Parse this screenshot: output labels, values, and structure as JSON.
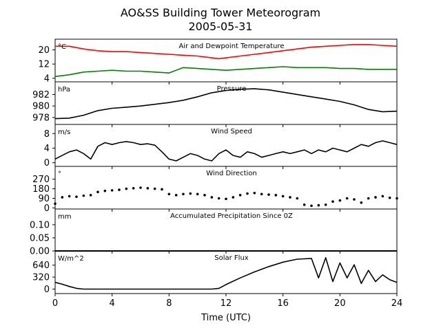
{
  "figure": {
    "title_line1": "AO&SS Building Tower Meteorogram",
    "title_line2": "2005-05-31",
    "xlabel": "Time (UTC)"
  },
  "chart_data": [
    {
      "type": "line",
      "id": "temp",
      "title": "Air and Dewpoint Temperature",
      "unit": "°C",
      "xlim": [
        0,
        24
      ],
      "ylim": [
        2,
        26
      ],
      "yticks": [
        4,
        12,
        20
      ],
      "xticks": [
        0,
        4,
        8,
        12,
        16,
        20,
        24
      ],
      "series": [
        {
          "color": "#ff0000",
          "x": [
            0,
            1,
            2,
            3,
            4,
            5,
            6,
            7,
            8,
            9,
            10,
            11,
            11.5,
            12,
            13,
            14,
            15,
            16,
            17,
            18,
            19,
            20,
            21,
            22,
            23,
            24
          ],
          "y": [
            22,
            22,
            20.5,
            19.5,
            19,
            19,
            18.5,
            18,
            17.5,
            17,
            16.5,
            15.5,
            15,
            15.5,
            16.5,
            17.5,
            18.5,
            19.5,
            20.5,
            21.5,
            22,
            22.5,
            23,
            23,
            22.5,
            22
          ]
        },
        {
          "color": "#008000",
          "x": [
            0,
            1,
            2,
            3,
            4,
            5,
            6,
            7,
            8,
            9,
            10,
            11,
            12,
            13,
            14,
            15,
            16,
            17,
            18,
            19,
            20,
            21,
            22,
            23,
            24
          ],
          "y": [
            5,
            6,
            7.5,
            8,
            8.5,
            8,
            8,
            7.5,
            7,
            10,
            9.5,
            9,
            8.5,
            9,
            9.5,
            10,
            10.5,
            10,
            10,
            10,
            9.5,
            9.5,
            9,
            9,
            9
          ]
        }
      ]
    },
    {
      "type": "line",
      "id": "pressure",
      "title": "Pressure",
      "unit": "hPa",
      "xlim": [
        0,
        24
      ],
      "ylim": [
        976.8,
        984.2
      ],
      "yticks": [
        978,
        980,
        982
      ],
      "xticks": [
        0,
        4,
        8,
        12,
        16,
        20,
        24
      ],
      "series": [
        {
          "color": "#000000",
          "x": [
            0,
            1,
            2,
            3,
            4,
            5,
            6,
            7,
            8,
            9,
            10,
            11,
            12,
            13,
            14,
            15,
            16,
            17,
            18,
            19,
            20,
            21,
            22,
            23,
            24
          ],
          "y": [
            977.8,
            977.9,
            978.4,
            979.2,
            979.6,
            979.8,
            980.0,
            980.3,
            980.6,
            981.0,
            981.6,
            982.3,
            982.7,
            982.9,
            983.0,
            982.8,
            982.4,
            982.0,
            981.6,
            981.2,
            980.8,
            980.2,
            979.4,
            979.0,
            979.1
          ]
        }
      ]
    },
    {
      "type": "line",
      "id": "wind_speed",
      "title": "Wind Speed",
      "unit": "m/s",
      "xlim": [
        0,
        24
      ],
      "ylim": [
        -1,
        10.5
      ],
      "yticks": [
        0,
        4,
        8
      ],
      "xticks": [
        0,
        4,
        8,
        12,
        16,
        20,
        24
      ],
      "series": [
        {
          "color": "#000000",
          "x": [
            0,
            0.5,
            1,
            1.5,
            2,
            2.5,
            3,
            3.5,
            4,
            4.5,
            5,
            5.5,
            6,
            6.5,
            7,
            7.5,
            8,
            8.5,
            9,
            9.5,
            10,
            10.5,
            11,
            11.5,
            12,
            12.5,
            13,
            13.5,
            14,
            14.5,
            15,
            15.5,
            16,
            16.5,
            17,
            17.5,
            18,
            18.5,
            19,
            19.5,
            20,
            20.5,
            21,
            21.5,
            22,
            22.5,
            23,
            23.5,
            24
          ],
          "y": [
            1,
            2,
            3,
            3.5,
            2.5,
            1,
            4.5,
            5.5,
            5,
            5.5,
            5.8,
            5.5,
            5,
            5.2,
            4.8,
            3,
            1,
            0.5,
            1.5,
            2.5,
            2,
            1,
            0.5,
            2.5,
            3.5,
            2,
            1.5,
            3,
            2.5,
            1.5,
            2,
            2.5,
            3,
            2.5,
            3,
            3.5,
            2.5,
            3.5,
            3,
            4,
            3.5,
            3,
            4,
            5,
            4.5,
            5.5,
            6,
            5.5,
            5
          ]
        }
      ]
    },
    {
      "type": "scatter",
      "id": "wind_direction",
      "title": "Wind Direction",
      "unit": "°",
      "xlim": [
        0,
        24
      ],
      "ylim": [
        -10,
        390
      ],
      "yticks": [
        0,
        90,
        180,
        270
      ],
      "xticks": [
        0,
        4,
        8,
        12,
        16,
        20,
        24
      ],
      "series": [
        {
          "color": "#000000",
          "x": [
            0,
            0.5,
            1,
            1.5,
            2,
            2.5,
            3,
            3.5,
            4,
            4.5,
            5,
            5.5,
            6,
            6.5,
            7,
            7.5,
            8,
            8.5,
            9,
            9.5,
            10,
            10.5,
            11,
            11.5,
            12,
            12.5,
            13,
            13.5,
            14,
            14.5,
            15,
            15.5,
            16,
            16.5,
            17,
            17.5,
            18,
            18.5,
            19,
            19.5,
            20,
            20.5,
            21,
            21.5,
            22,
            22.5,
            23,
            23.5,
            24
          ],
          "y": [
            40,
            100,
            110,
            105,
            115,
            120,
            150,
            160,
            165,
            170,
            180,
            185,
            190,
            185,
            180,
            175,
            130,
            120,
            130,
            135,
            130,
            120,
            100,
            90,
            85,
            100,
            120,
            135,
            140,
            130,
            125,
            120,
            110,
            100,
            90,
            30,
            20,
            25,
            30,
            60,
            70,
            90,
            80,
            50,
            90,
            100,
            110,
            95,
            90
          ]
        }
      ]
    },
    {
      "type": "line",
      "id": "precip",
      "title": "Accumulated Precipitation Since 0Z",
      "unit": "mm",
      "xlim": [
        0,
        24
      ],
      "ylim": [
        0,
        0.16
      ],
      "yticks": [
        0.0,
        0.05,
        0.1
      ],
      "ytick_labels": [
        "0.00",
        "0.05",
        "0.10"
      ],
      "xticks": [
        0,
        4,
        8,
        12,
        16,
        20,
        24
      ],
      "series": [
        {
          "color": "#000000",
          "x": [
            0,
            24
          ],
          "y": [
            0,
            0
          ]
        }
      ]
    },
    {
      "type": "line",
      "id": "solar",
      "title": "Solar Flux",
      "unit": "W/m^2",
      "xlim": [
        0,
        24
      ],
      "ylim": [
        -120,
        1020
      ],
      "yticks": [
        0,
        320,
        640
      ],
      "xticks": [
        0,
        4,
        8,
        12,
        16,
        20,
        24
      ],
      "xtick_labels": [
        "0",
        "4",
        "8",
        "12",
        "16",
        "20",
        "24"
      ],
      "series": [
        {
          "color": "#000000",
          "x": [
            0,
            0.5,
            1,
            1.5,
            2,
            4,
            6,
            8,
            10,
            11,
            11.5,
            12,
            13,
            14,
            15,
            16,
            17,
            18,
            18.5,
            19,
            19.5,
            20,
            20.5,
            21,
            21.5,
            22,
            22.5,
            23,
            23.5,
            24
          ],
          "y": [
            180,
            130,
            70,
            20,
            0,
            0,
            0,
            0,
            0,
            0,
            20,
            120,
            300,
            460,
            600,
            720,
            800,
            820,
            300,
            840,
            200,
            700,
            300,
            650,
            150,
            500,
            200,
            380,
            250,
            180
          ]
        }
      ]
    }
  ]
}
